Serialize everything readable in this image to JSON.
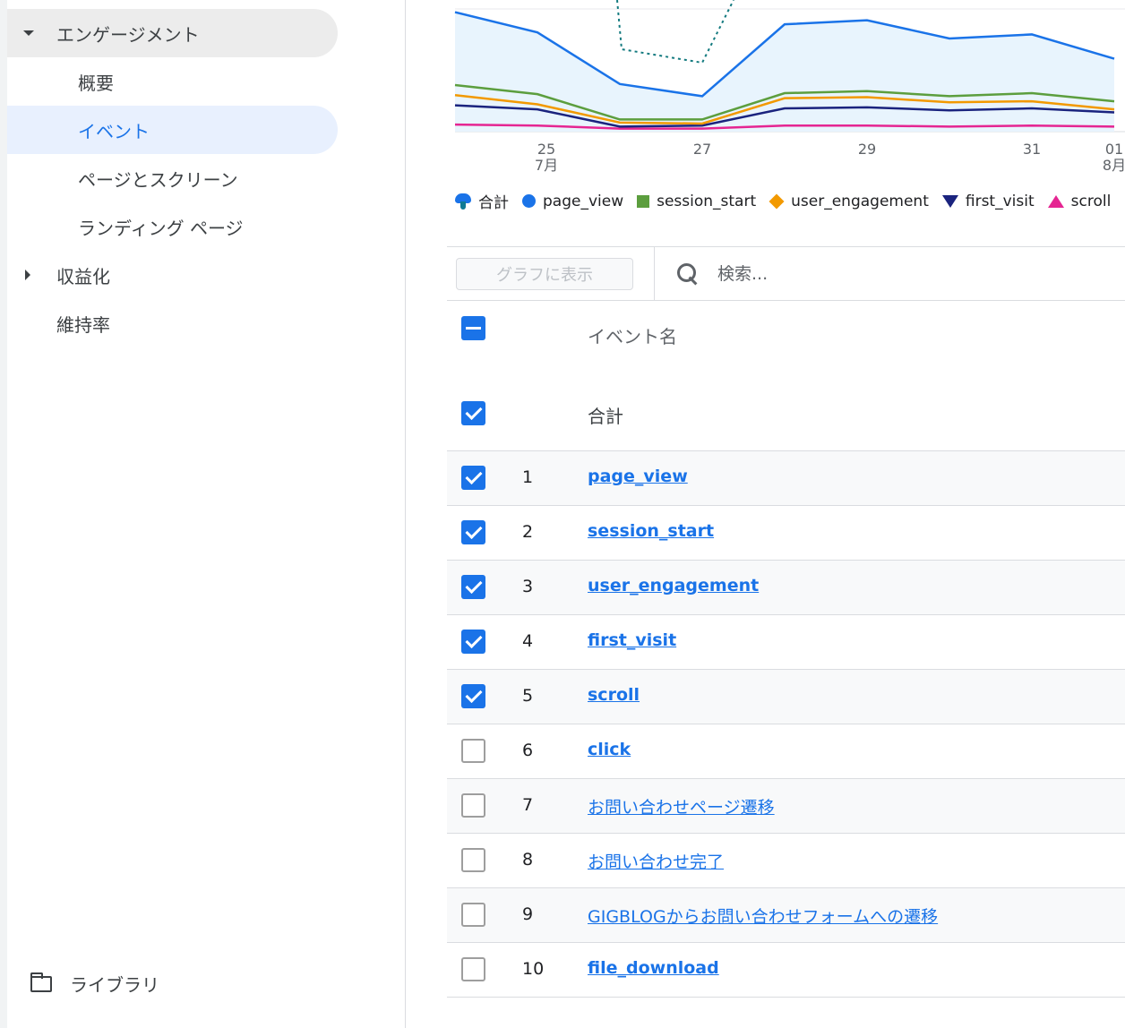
{
  "sidebar": {
    "groups": [
      {
        "label": "エンゲージメント",
        "expanded": true
      },
      {
        "label": "収益化",
        "expanded": false
      }
    ],
    "items": [
      "概要",
      "イベント",
      "ページとスクリーン",
      "ランディング ページ"
    ],
    "standalone": "維持率",
    "library": "ライブラリ"
  },
  "chart_data": {
    "type": "line",
    "x_ticks": [
      {
        "day": "25",
        "month": "7月"
      },
      {
        "day": "27",
        "month": ""
      },
      {
        "day": "29",
        "month": ""
      },
      {
        "day": "31",
        "month": ""
      },
      {
        "day": "01",
        "month": "8月"
      }
    ],
    "legend": [
      {
        "name": "合計",
        "color": "#1a73e8",
        "marker": "blob"
      },
      {
        "name": "page_view",
        "color": "#1a73e8",
        "marker": "circle"
      },
      {
        "name": "session_start",
        "color": "#5c9e3e",
        "marker": "square"
      },
      {
        "name": "user_engagement",
        "color": "#f29900",
        "marker": "diamond"
      },
      {
        "name": "first_visit",
        "color": "#1a237e",
        "marker": "triangle-down"
      },
      {
        "name": "scroll",
        "color": "#e52592",
        "marker": "triangle-up"
      }
    ],
    "series": [
      {
        "name": "page_view",
        "color": "#1a73e8",
        "values": [
          118,
          98,
          47,
          35,
          106,
          110,
          92,
          96,
          72
        ]
      },
      {
        "name": "session_start",
        "color": "#5c9e3e",
        "values": [
          46,
          37,
          12,
          12,
          38,
          40,
          35,
          38,
          30
        ]
      },
      {
        "name": "user_engagement",
        "color": "#f29900",
        "values": [
          36,
          27,
          9,
          8,
          33,
          34,
          29,
          30,
          22
        ]
      },
      {
        "name": "first_visit",
        "color": "#1a237e",
        "values": [
          26,
          22,
          5,
          6,
          23,
          24,
          21,
          23,
          19
        ]
      },
      {
        "name": "scroll",
        "color": "#e52592",
        "values": [
          7,
          6,
          3,
          3,
          6,
          6,
          5,
          6,
          5
        ]
      }
    ],
    "grid": true
  },
  "toolbar": {
    "graph_button": "グラフに表示",
    "search_placeholder": "検索..."
  },
  "table": {
    "column_event_name": "イベント名",
    "total_label": "合計",
    "rows": [
      {
        "rank": "1",
        "name": "page_view",
        "checked": true
      },
      {
        "rank": "2",
        "name": "session_start",
        "checked": true
      },
      {
        "rank": "3",
        "name": "user_engagement",
        "checked": true
      },
      {
        "rank": "4",
        "name": "first_visit",
        "checked": true
      },
      {
        "rank": "5",
        "name": "scroll",
        "checked": true
      },
      {
        "rank": "6",
        "name": "click",
        "checked": false
      },
      {
        "rank": "7",
        "name": "お問い合わせページ遷移",
        "checked": false
      },
      {
        "rank": "8",
        "name": "お問い合わせ完了",
        "checked": false
      },
      {
        "rank": "9",
        "name": "GIGBLOGからお問い合わせフォームへの遷移",
        "checked": false
      },
      {
        "rank": "10",
        "name": "file_download",
        "checked": false
      }
    ]
  }
}
